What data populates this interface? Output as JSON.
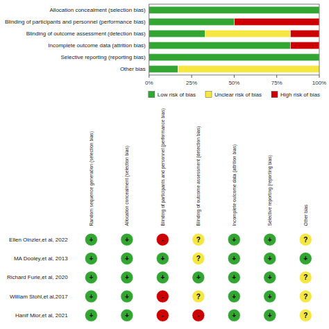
{
  "chart_data": [
    {
      "type": "bar",
      "orientation": "horizontal",
      "stacked": true,
      "categories": [
        "Allocation concealment (selection bias)",
        "Blinding of participants and personnel (performance bias)",
        "Blinding of outcome assessment (detection bias)",
        "Incomplete outcome data (attrition bias)",
        "Selective reporting (reporting bias)",
        "Other bias"
      ],
      "series": [
        {
          "name": "Low risk of bias",
          "color": "#33a532",
          "values": [
            100,
            50,
            33,
            83,
            100,
            17
          ]
        },
        {
          "name": "Unclear risk of bias",
          "color": "#f5e642",
          "values": [
            0,
            0,
            50,
            0,
            0,
            83
          ]
        },
        {
          "name": "High risk of bias",
          "color": "#cc0000",
          "values": [
            0,
            50,
            17,
            17,
            0,
            0
          ]
        }
      ],
      "xlim": [
        0,
        100
      ],
      "xticks": [
        {
          "value": 0,
          "label": "0%"
        },
        {
          "value": 25,
          "label": "25%"
        },
        {
          "value": 50,
          "label": "50%"
        },
        {
          "value": 75,
          "label": "75%"
        },
        {
          "value": 100,
          "label": "100%"
        }
      ],
      "grid": false,
      "legend": "bottom"
    },
    {
      "type": "grid",
      "categories": [
        "Random sequence generation (selection bias)",
        "Allocation concealment (selection bias)",
        "Blinding of participants and personnel (performance bias)",
        "Blinding of outcome assessment (detection bias)",
        "Incomplete outcome data (attrition bias)",
        "Selective reporting (reporting bias)",
        "Other bias"
      ],
      "rows": [
        "Ellen Oinzler,et al, 2022",
        "MA Dooley,et al, 2013",
        "Richard Furie,et al, 2020",
        "William Stohl,et al,2017",
        "Hanif Mior,et al, 2021"
      ],
      "levels": [
        {
          "label": "+",
          "color": "#33a532"
        },
        {
          "label": "?",
          "color": "#f5e642"
        },
        {
          "label": "-",
          "color": "#cc0000"
        }
      ],
      "cells": [
        [
          "+",
          "+",
          "-",
          "?",
          "+",
          "+",
          "?"
        ],
        [
          "+",
          "+",
          "+",
          "?",
          "+",
          "+",
          "+"
        ],
        [
          "+",
          "+",
          "+",
          "+",
          "+",
          "+",
          "?"
        ],
        [
          "+",
          "+",
          "-",
          "?",
          "+",
          "+",
          "?"
        ],
        [
          "+",
          "+",
          "-",
          "-",
          "+",
          "+",
          "?"
        ]
      ]
    }
  ]
}
